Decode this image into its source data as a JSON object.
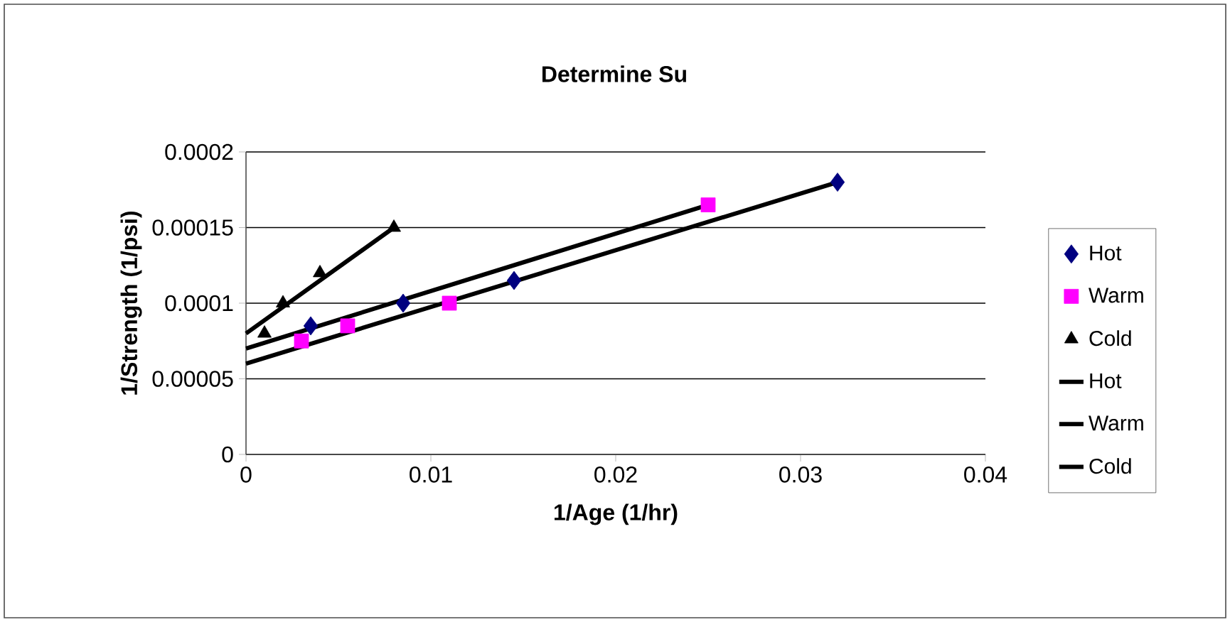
{
  "chart_data": {
    "type": "scatter",
    "title": "Determine Su",
    "xlabel": "1/Age (1/hr)",
    "ylabel": "1/Strength (1/psi)",
    "xlim": [
      0,
      0.04
    ],
    "xticks": [
      0,
      0.01,
      0.02,
      0.03,
      0.04
    ],
    "ylim": [
      0,
      0.0002
    ],
    "yticks": [
      {
        "value": 0,
        "label": "0"
      },
      {
        "value": 5e-05,
        "label": "0.00005"
      },
      {
        "value": 0.0001,
        "label": "0.0001"
      },
      {
        "value": 0.00015,
        "label": "0.00015"
      },
      {
        "value": 0.0002,
        "label": "0.0002"
      }
    ],
    "grid": "y",
    "legend": "right",
    "series": [
      {
        "name": "Hot",
        "marker": "diamond",
        "color": "#000080",
        "x": [
          0.0035,
          0.0085,
          0.0145,
          0.032
        ],
        "values": [
          8.5e-05,
          0.0001,
          0.000115,
          0.00018
        ]
      },
      {
        "name": "Warm",
        "marker": "square",
        "color": "#ff00ff",
        "x": [
          0.003,
          0.0055,
          0.011,
          0.025
        ],
        "values": [
          7.5e-05,
          8.5e-05,
          0.0001,
          0.000165
        ]
      },
      {
        "name": "Cold",
        "marker": "triangle",
        "color": "#000000",
        "x": [
          0.001,
          0.002,
          0.004,
          0.008
        ],
        "values": [
          8e-05,
          0.0001,
          0.00012,
          0.00015
        ]
      },
      {
        "name": "Hot",
        "type": "line",
        "marker": "none",
        "color": "#000000",
        "x": [
          0,
          0.032
        ],
        "values": [
          6e-05,
          0.00018
        ]
      },
      {
        "name": "Warm",
        "type": "line",
        "marker": "none",
        "color": "#000000",
        "x": [
          0,
          0.025
        ],
        "values": [
          7e-05,
          0.000165
        ]
      },
      {
        "name": "Cold",
        "type": "line",
        "marker": "none",
        "color": "#000000",
        "x": [
          0,
          0.008
        ],
        "values": [
          8e-05,
          0.00015
        ]
      }
    ]
  }
}
